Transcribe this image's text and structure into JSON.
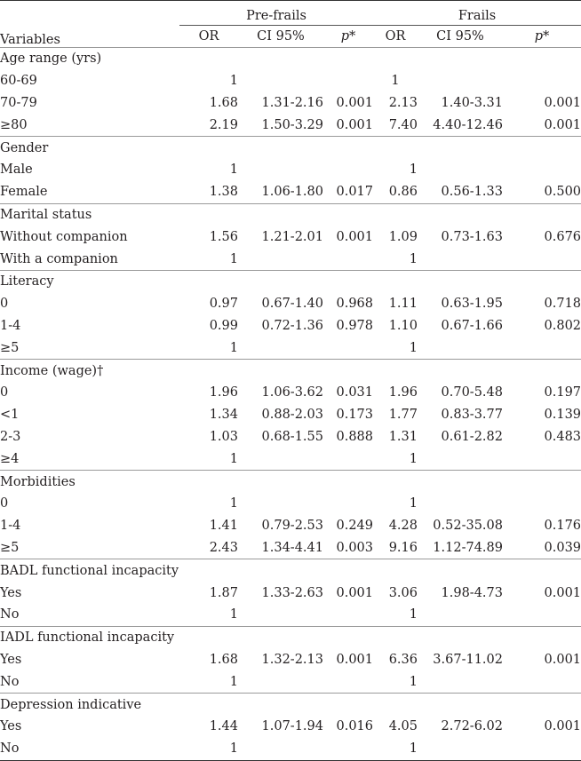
{
  "table": {
    "variables_label": "Variables",
    "groups": [
      "Pre-frails",
      "Frails"
    ],
    "subheaders": [
      "OR",
      "CI 95%",
      "p*",
      "OR",
      "CI 95%",
      "p*"
    ],
    "sections": [
      {
        "title": "Age range (yrs)",
        "rows": [
          {
            "label": "60-69",
            "or1": "1",
            "ci1": "",
            "p1": "",
            "or2": "1",
            "ci2": "",
            "p2": ""
          },
          {
            "label": "70-79",
            "or1": "1.68",
            "ci1": "1.31-2.16",
            "p1": "0.001",
            "or2": "2.13",
            "ci2": "1.40-3.31",
            "p2": "0.001"
          },
          {
            "label": "≥80",
            "or1": "2.19",
            "ci1": "1.50-3.29",
            "p1": "0.001",
            "or2": "7.40",
            "ci2": "4.40-12.46",
            "p2": "0.001"
          }
        ]
      },
      {
        "title": "Gender",
        "rows": [
          {
            "label": "Male",
            "or1": "1",
            "ci1": "",
            "p1": "",
            "or2": "1",
            "ci2": "",
            "p2": ""
          },
          {
            "label": "Female",
            "or1": "1.38",
            "ci1": "1.06-1.80",
            "p1": "0.017",
            "or2": "0.86",
            "ci2": "0.56-1.33",
            "p2": "0.500"
          }
        ]
      },
      {
        "title": "Marital status",
        "rows": [
          {
            "label": "Without companion",
            "or1": "1.56",
            "ci1": "1.21-2.01",
            "p1": "0.001",
            "or2": "1.09",
            "ci2": "0.73-1.63",
            "p2": "0.676"
          },
          {
            "label": "With a companion",
            "or1": "1",
            "ci1": "",
            "p1": "",
            "or2": "1",
            "ci2": "",
            "p2": ""
          }
        ]
      },
      {
        "title": "Literacy",
        "rows": [
          {
            "label": "0",
            "or1": "0.97",
            "ci1": "0.67-1.40",
            "p1": "0.968",
            "or2": "1.11",
            "ci2": "0.63-1.95",
            "p2": "0.718"
          },
          {
            "label": "1-4",
            "or1": "0.99",
            "ci1": "0.72-1.36",
            "p1": "0.978",
            "or2": "1.10",
            "ci2": "0.67-1.66",
            "p2": "0.802"
          },
          {
            "label": "≥5",
            "or1": "1",
            "ci1": "",
            "p1": "",
            "or2": "1",
            "ci2": "",
            "p2": ""
          }
        ]
      },
      {
        "title": "Income (wage)†",
        "rows": [
          {
            "label": "0",
            "or1": "1.96",
            "ci1": "1.06-3.62",
            "p1": "0.031",
            "or2": "1.96",
            "ci2": "0.70-5.48",
            "p2": "0.197"
          },
          {
            "label": "<1",
            "or1": "1.34",
            "ci1": "0.88-2.03",
            "p1": "0.173",
            "or2": "1.77",
            "ci2": "0.83-3.77",
            "p2": "0.139"
          },
          {
            "label": "2-3",
            "or1": "1.03",
            "ci1": "0.68-1.55",
            "p1": "0.888",
            "or2": "1.31",
            "ci2": "0.61-2.82",
            "p2": "0.483"
          },
          {
            "label": "≥4",
            "or1": "1",
            "ci1": "",
            "p1": "",
            "or2": "1",
            "ci2": "",
            "p2": ""
          }
        ]
      },
      {
        "title": "Morbidities",
        "rows": [
          {
            "label": "0",
            "or1": "1",
            "ci1": "",
            "p1": "",
            "or2": "1",
            "ci2": "",
            "p2": ""
          },
          {
            "label": "1-4",
            "or1": "1.41",
            "ci1": "0.79-2.53",
            "p1": "0.249",
            "or2": "4.28",
            "ci2": "0.52-35.08",
            "p2": "0.176"
          },
          {
            "label": "≥5",
            "or1": "2.43",
            "ci1": "1.34-4.41",
            "p1": "0.003",
            "or2": "9.16",
            "ci2": "1.12-74.89",
            "p2": "0.039"
          }
        ]
      },
      {
        "title": "BADL functional incapacity",
        "rows": [
          {
            "label": "Yes",
            "or1": "1.87",
            "ci1": "1.33-2.63",
            "p1": "0.001",
            "or2": "3.06",
            "ci2": "1.98-4.73",
            "p2": "0.001"
          },
          {
            "label": "No",
            "or1": "1",
            "ci1": "",
            "p1": "",
            "or2": "1",
            "ci2": "",
            "p2": ""
          }
        ]
      },
      {
        "title": "IADL functional incapacity",
        "rows": [
          {
            "label": "Yes",
            "or1": "1.68",
            "ci1": "1.32-2.13",
            "p1": "0.001",
            "or2": "6.36",
            "ci2": "3.67-11.02",
            "p2": "0.001"
          },
          {
            "label": "No",
            "or1": "1",
            "ci1": "",
            "p1": "",
            "or2": "1",
            "ci2": "",
            "p2": ""
          }
        ]
      },
      {
        "title": "Depression indicative",
        "rows": [
          {
            "label": "Yes",
            "or1": "1.44",
            "ci1": "1.07-1.94",
            "p1": "0.016",
            "or2": "4.05",
            "ci2": "2.72-6.02",
            "p2": "0.001"
          },
          {
            "label": "No",
            "or1": "1",
            "ci1": "",
            "p1": "",
            "or2": "1",
            "ci2": "",
            "p2": ""
          }
        ]
      }
    ]
  }
}
